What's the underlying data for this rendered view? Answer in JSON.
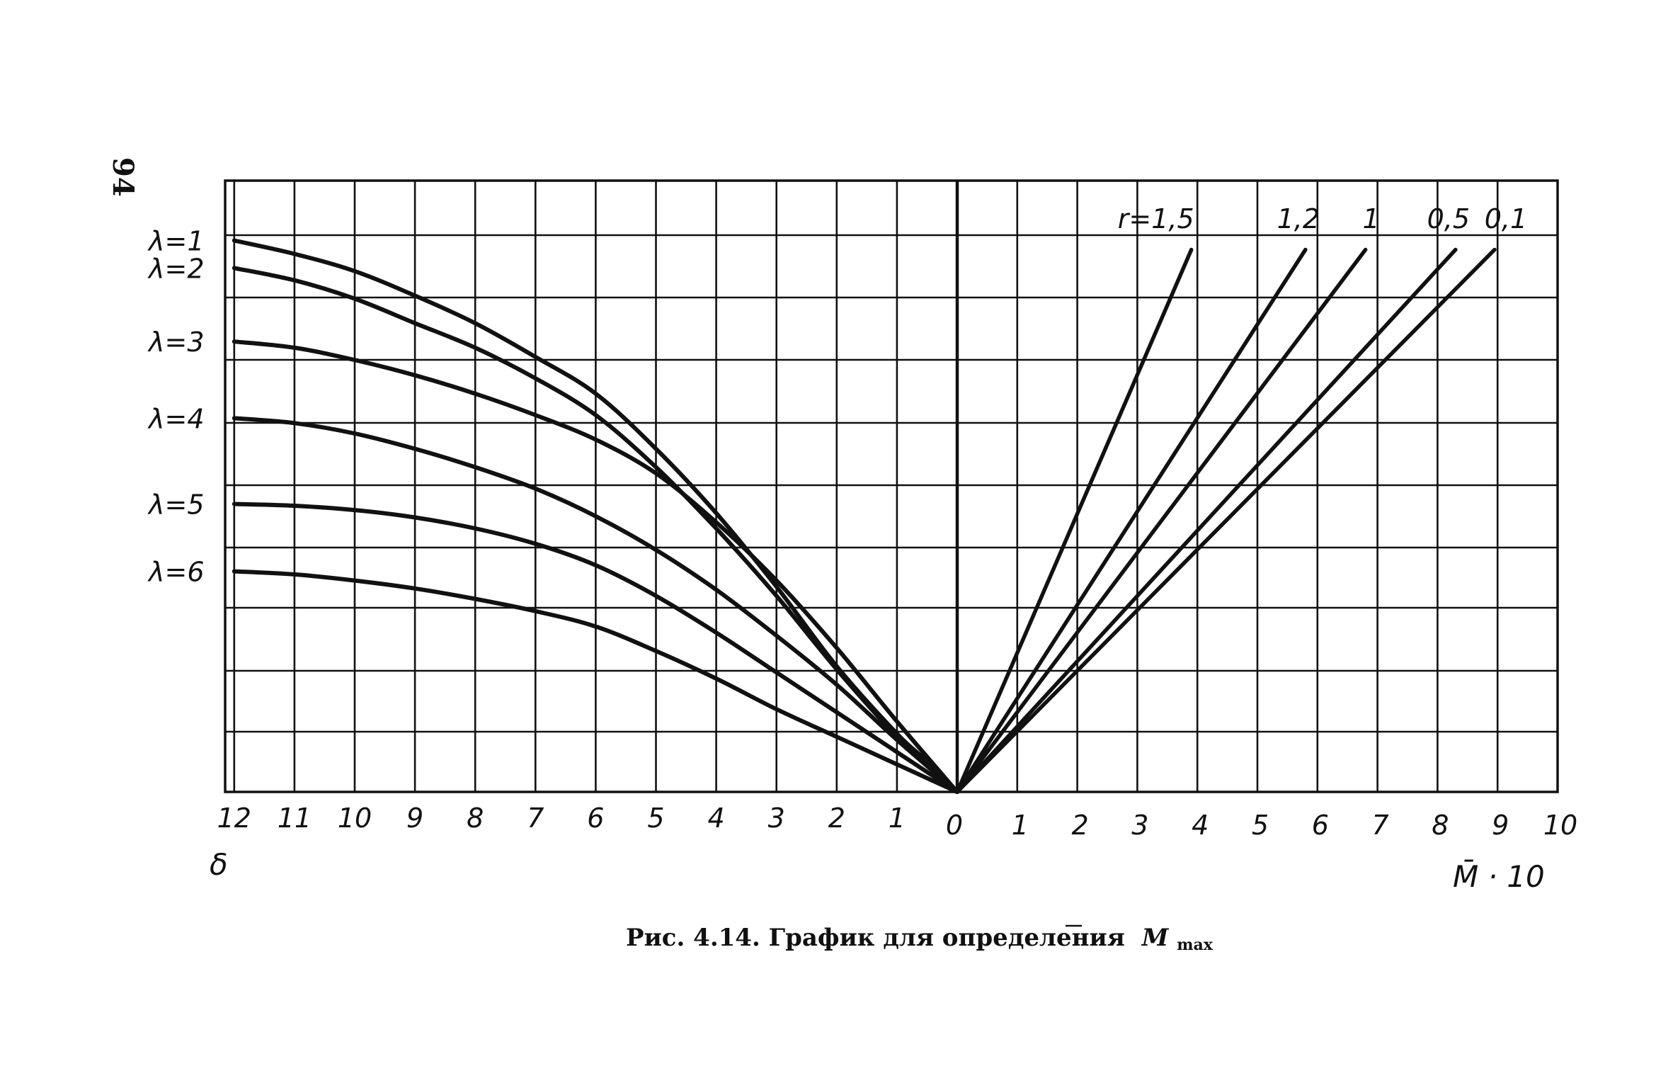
{
  "page_number": "94",
  "caption": {
    "text": "Рис. 4.14. График для определения",
    "symbol": "M",
    "subscript": "max"
  },
  "chart_data": [
    {
      "type": "line",
      "panel": "left",
      "xlabel": "δ",
      "xlim": [
        12,
        0
      ],
      "ylim": [
        0,
        9
      ],
      "x_ticks": [
        "12",
        "11",
        "10",
        "9",
        "8",
        "7",
        "6",
        "5",
        "4",
        "3",
        "2",
        "1",
        "0"
      ],
      "series": [
        {
          "name": "λ=1",
          "x": [
            12,
            11,
            10,
            9,
            8,
            7,
            6,
            5,
            4,
            3,
            2,
            1,
            0.5,
            0
          ],
          "y": [
            9.0,
            8.78,
            8.5,
            8.1,
            7.65,
            7.1,
            6.5,
            5.6,
            4.55,
            3.35,
            2.05,
            0.95,
            0.5,
            0
          ]
        },
        {
          "name": "λ=2",
          "x": [
            12,
            11,
            10,
            9,
            8,
            7,
            6,
            5,
            4,
            3,
            2,
            1,
            0.5,
            0
          ],
          "y": [
            8.55,
            8.35,
            8.05,
            7.65,
            7.25,
            6.75,
            6.15,
            5.3,
            4.3,
            3.2,
            2.0,
            0.9,
            0.45,
            0
          ]
        },
        {
          "name": "λ=3",
          "x": [
            12,
            11,
            10,
            9,
            8,
            7,
            6,
            5,
            4,
            3,
            2,
            1,
            0
          ]
        },
        {
          "name": "λ=4",
          "x": [
            12,
            11,
            10,
            9,
            8,
            7,
            6,
            5,
            4,
            3,
            2,
            1,
            0
          ]
        },
        {
          "name": "λ=5",
          "x": [
            12,
            11,
            10,
            9,
            8,
            7,
            6,
            5,
            4,
            3,
            2,
            1,
            0
          ]
        },
        {
          "name": "λ=6",
          "x": [
            12,
            11,
            10,
            9,
            8,
            7,
            6,
            5,
            4,
            3,
            2,
            1,
            0
          ]
        }
      ],
      "series_y": [
        [],
        [],
        [
          7.35,
          7.25,
          7.05,
          6.8,
          6.5,
          6.15,
          5.75,
          5.2,
          4.4,
          3.45,
          2.35,
          1.15,
          0
        ],
        [
          6.1,
          6.02,
          5.85,
          5.6,
          5.3,
          4.95,
          4.5,
          3.95,
          3.3,
          2.55,
          1.75,
          0.85,
          0
        ],
        [
          4.7,
          4.67,
          4.6,
          4.48,
          4.3,
          4.05,
          3.7,
          3.2,
          2.6,
          1.95,
          1.3,
          0.65,
          0
        ],
        [
          3.6,
          3.55,
          3.45,
          3.32,
          3.15,
          2.95,
          2.7,
          2.3,
          1.85,
          1.35,
          0.9,
          0.45,
          0
        ]
      ]
    },
    {
      "type": "line",
      "panel": "right",
      "xlabel": "M̄ · 10",
      "xlim": [
        0,
        10
      ],
      "ylim": [
        0,
        9
      ],
      "x_ticks": [
        "0",
        "1",
        "2",
        "3",
        "4",
        "5",
        "6",
        "7",
        "8",
        "9",
        "10"
      ],
      "series": [
        {
          "name": "r=1,5",
          "x": [
            0,
            3.9
          ],
          "y": [
            0,
            8.85
          ]
        },
        {
          "name": "1,2",
          "x": [
            0,
            5.8
          ],
          "y": [
            0,
            8.85
          ]
        },
        {
          "name": "1",
          "x": [
            0,
            6.8
          ],
          "y": [
            0,
            8.85
          ]
        },
        {
          "name": "0,5",
          "x": [
            0,
            8.3
          ],
          "y": [
            0,
            8.85
          ]
        },
        {
          "name": "0,1",
          "x": [
            0,
            8.95
          ],
          "y": [
            0,
            8.85
          ]
        }
      ]
    }
  ]
}
